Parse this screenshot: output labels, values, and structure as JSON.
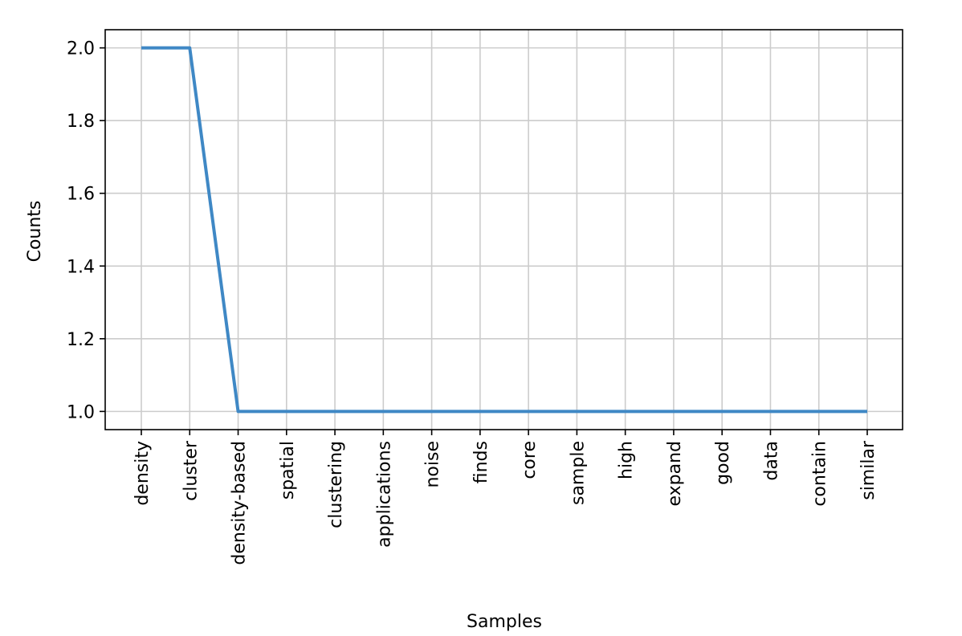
{
  "chart_data": {
    "type": "line",
    "title": "",
    "xlabel": "Samples",
    "ylabel": "Counts",
    "categories": [
      "density",
      "cluster",
      "density-based",
      "spatial",
      "clustering",
      "applications",
      "noise",
      "finds",
      "core",
      "sample",
      "high",
      "expand",
      "good",
      "data",
      "contain",
      "similar"
    ],
    "series": [
      {
        "values": [
          2,
          2,
          1,
          1,
          1,
          1,
          1,
          1,
          1,
          1,
          1,
          1,
          1,
          1,
          1,
          1
        ],
        "color": "#3f88c5"
      }
    ],
    "ylim": [
      0.95,
      2.05
    ],
    "yticks": [
      "1.0",
      "1.2",
      "1.4",
      "1.6",
      "1.8",
      "2.0"
    ],
    "grid": true,
    "legend": "none"
  }
}
